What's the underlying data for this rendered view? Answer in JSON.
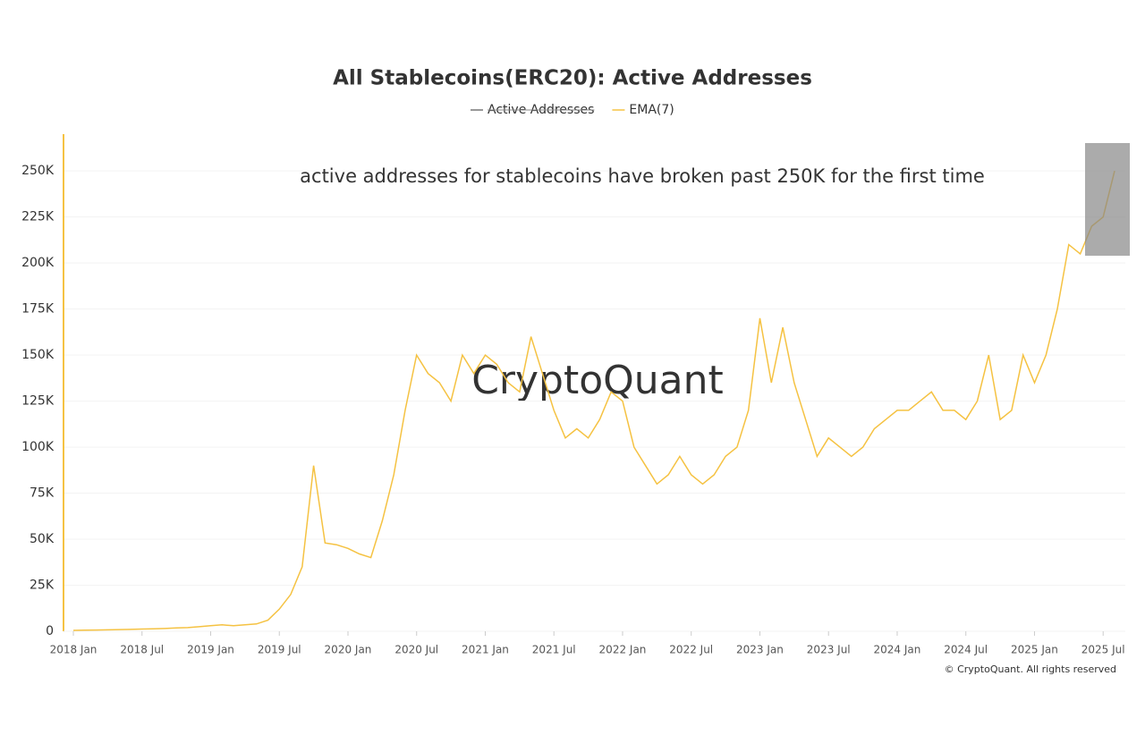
{
  "chart_data": {
    "type": "line",
    "title": "All Stablecoins(ERC20): Active Addresses",
    "annotation": "active addresses for stablecoins have broken past 250K for the first time",
    "watermark": "CryptoQuant",
    "credit": "© CryptoQuant. All rights reserved",
    "x": [
      "2018-01",
      "2018-02",
      "2018-03",
      "2018-04",
      "2018-05",
      "2018-06",
      "2018-07",
      "2018-08",
      "2018-09",
      "2018-10",
      "2018-11",
      "2018-12",
      "2019-01",
      "2019-02",
      "2019-03",
      "2019-04",
      "2019-05",
      "2019-06",
      "2019-07",
      "2019-08",
      "2019-09",
      "2019-10",
      "2019-11",
      "2019-12",
      "2020-01",
      "2020-02",
      "2020-03",
      "2020-04",
      "2020-05",
      "2020-06",
      "2020-07",
      "2020-08",
      "2020-09",
      "2020-10",
      "2020-11",
      "2020-12",
      "2021-01",
      "2021-02",
      "2021-03",
      "2021-04",
      "2021-05",
      "2021-06",
      "2021-07",
      "2021-08",
      "2021-09",
      "2021-10",
      "2021-11",
      "2021-12",
      "2022-01",
      "2022-02",
      "2022-03",
      "2022-04",
      "2022-05",
      "2022-06",
      "2022-07",
      "2022-08",
      "2022-09",
      "2022-10",
      "2022-11",
      "2022-12",
      "2023-01",
      "2023-02",
      "2023-03",
      "2023-04",
      "2023-05",
      "2023-06",
      "2023-07",
      "2023-08",
      "2023-09",
      "2023-10",
      "2023-11",
      "2023-12",
      "2024-01",
      "2024-02",
      "2024-03",
      "2024-04",
      "2024-05",
      "2024-06",
      "2024-07",
      "2024-08",
      "2024-09",
      "2024-10",
      "2024-11",
      "2024-12",
      "2025-01",
      "2025-02",
      "2025-03",
      "2025-04",
      "2025-05",
      "2025-06",
      "2025-07",
      "2025-08"
    ],
    "series": [
      {
        "name": "Active Addresses",
        "color": "#777777",
        "hidden": true
      },
      {
        "name": "EMA(7)",
        "color": "#f5c242",
        "values": [
          500,
          600,
          700,
          800,
          900,
          1000,
          1200,
          1300,
          1500,
          1800,
          2000,
          2500,
          3000,
          3500,
          3000,
          3500,
          4000,
          6000,
          12000,
          20000,
          35000,
          90000,
          48000,
          47000,
          45000,
          42000,
          40000,
          60000,
          85000,
          120000,
          150000,
          140000,
          135000,
          125000,
          150000,
          140000,
          150000,
          145000,
          135000,
          130000,
          160000,
          140000,
          120000,
          105000,
          110000,
          105000,
          115000,
          130000,
          125000,
          100000,
          90000,
          80000,
          85000,
          95000,
          85000,
          80000,
          85000,
          95000,
          100000,
          120000,
          170000,
          135000,
          165000,
          135000,
          115000,
          95000,
          105000,
          100000,
          95000,
          100000,
          110000,
          115000,
          120000,
          120000,
          125000,
          130000,
          120000,
          120000,
          115000,
          125000,
          150000,
          115000,
          120000,
          150000,
          135000,
          150000,
          175000,
          210000,
          205000,
          220000,
          225000,
          250000
        ]
      }
    ],
    "xlim": [
      "2018-01",
      "2025-08"
    ],
    "xticks": [
      {
        "value": "2018-01",
        "label": "2018 Jan"
      },
      {
        "value": "2018-07",
        "label": "2018 Jul"
      },
      {
        "value": "2019-01",
        "label": "2019 Jan"
      },
      {
        "value": "2019-07",
        "label": "2019 Jul"
      },
      {
        "value": "2020-01",
        "label": "2020 Jan"
      },
      {
        "value": "2020-07",
        "label": "2020 Jul"
      },
      {
        "value": "2021-01",
        "label": "2021 Jan"
      },
      {
        "value": "2021-07",
        "label": "2021 Jul"
      },
      {
        "value": "2022-01",
        "label": "2022 Jan"
      },
      {
        "value": "2022-07",
        "label": "2022 Jul"
      },
      {
        "value": "2023-01",
        "label": "2023 Jan"
      },
      {
        "value": "2023-07",
        "label": "2023 Jul"
      },
      {
        "value": "2024-01",
        "label": "2024 Jan"
      },
      {
        "value": "2024-07",
        "label": "2024 Jul"
      },
      {
        "value": "2025-01",
        "label": "2025 Jan"
      },
      {
        "value": "2025-07",
        "label": "2025 Jul"
      }
    ],
    "ylim": [
      0,
      270000
    ],
    "yticks": [
      0,
      {
        "value": 25000,
        "label": "25K"
      },
      {
        "value": 50000,
        "label": "50K"
      },
      {
        "value": 75000,
        "label": "75K"
      },
      {
        "value": 100000,
        "label": "100K"
      },
      {
        "value": 125000,
        "label": "125K"
      },
      {
        "value": 150000,
        "label": "150K"
      },
      {
        "value": 175000,
        "label": "175K"
      },
      {
        "value": 200000,
        "label": "200K"
      },
      {
        "value": 225000,
        "label": "225K"
      },
      {
        "value": 250000,
        "label": "250K"
      }
    ],
    "grid": true
  }
}
